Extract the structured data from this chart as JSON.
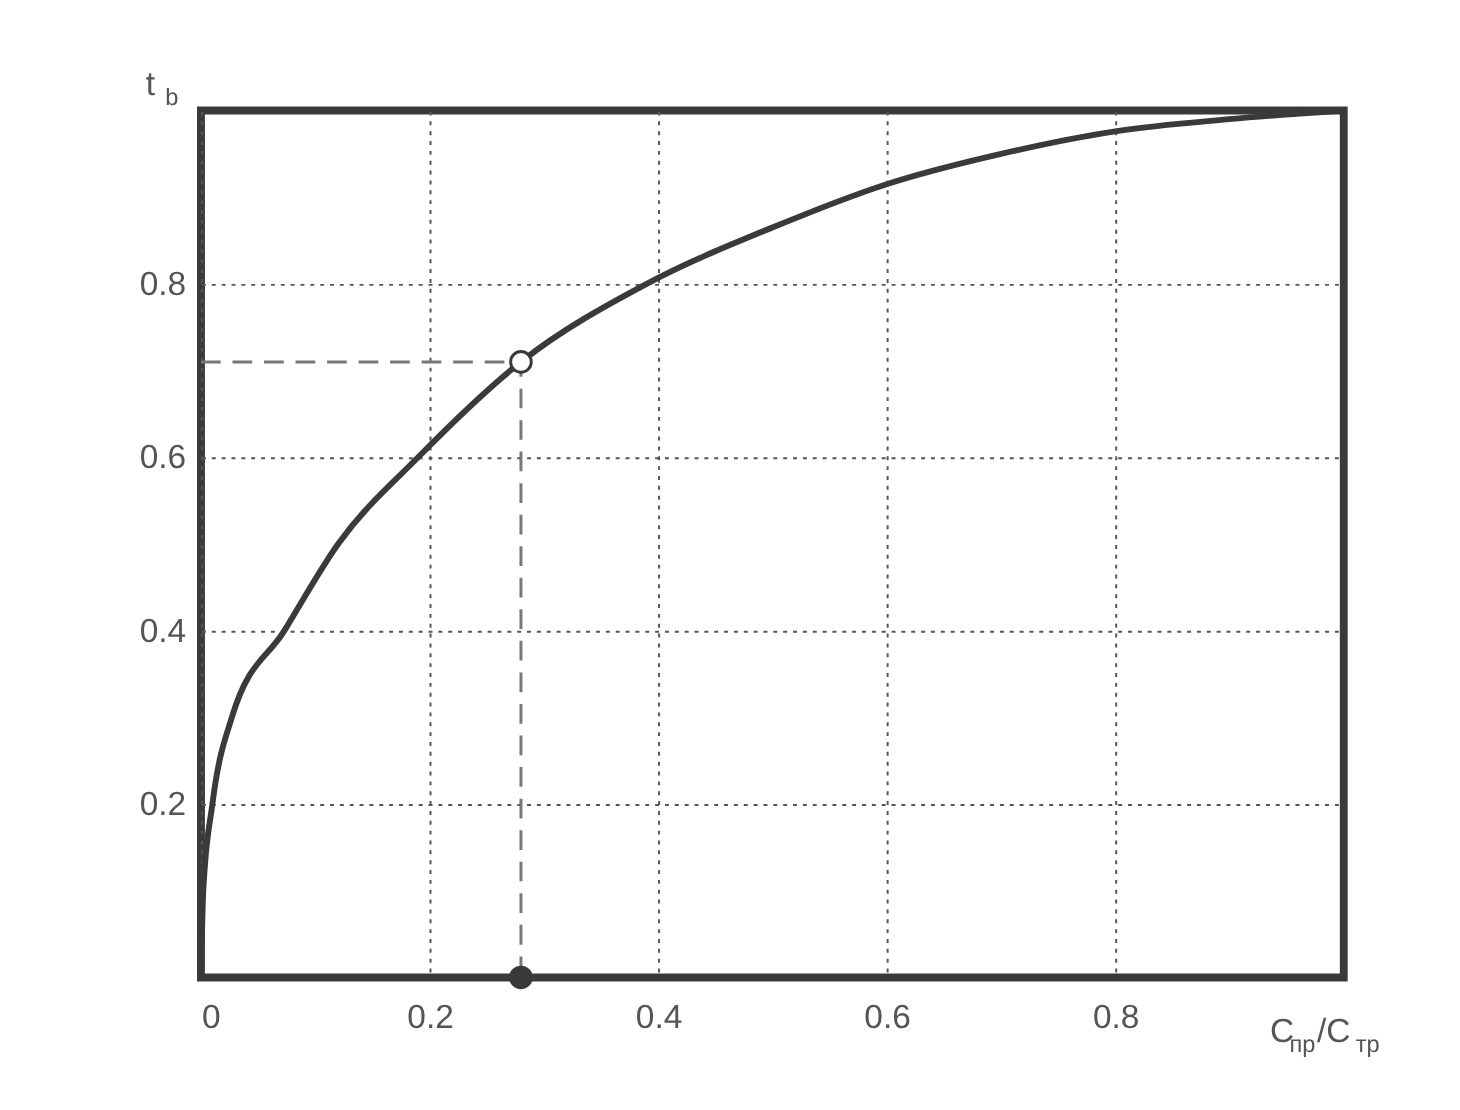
{
  "chart_data": {
    "type": "line",
    "xlabel": "C$_{пр}$/C$_{тр}$",
    "ylabel": "t$_{b}$",
    "xlim": [
      0,
      1
    ],
    "ylim": [
      0,
      1
    ],
    "xticks": [
      0,
      0.2,
      0.4,
      0.6,
      0.8
    ],
    "yticks": [
      0.2,
      0.4,
      0.6,
      0.8
    ],
    "grid": true,
    "series": [
      {
        "color": "#3a3a3a",
        "line_style": "solid",
        "x": [
          0,
          0.002,
          0.01,
          0.027,
          0.073,
          0.12,
          0.19,
          0.28,
          0.39,
          0.5,
          0.6,
          0.7,
          0.8,
          0.9,
          1
        ],
        "values": [
          0,
          0.1,
          0.2,
          0.3,
          0.4,
          0.5,
          0.6,
          0.71,
          0.8,
          0.865,
          0.915,
          0.95,
          0.976,
          0.99,
          1
        ]
      },
      {
        "type": "line",
        "color": "#777777",
        "line_style": "dashed",
        "x": [
          0,
          0.28,
          0.28
        ],
        "values": [
          0.71,
          0.71,
          0
        ]
      },
      {
        "type": "scatter",
        "color": "#ffffff",
        "marker": "circle",
        "x": [
          0.28
        ],
        "values": [
          0.71
        ]
      },
      {
        "type": "scatter",
        "color": "#3a3a3a",
        "marker": "circle",
        "x": [
          0.28
        ],
        "values": [
          0
        ]
      }
    ]
  }
}
